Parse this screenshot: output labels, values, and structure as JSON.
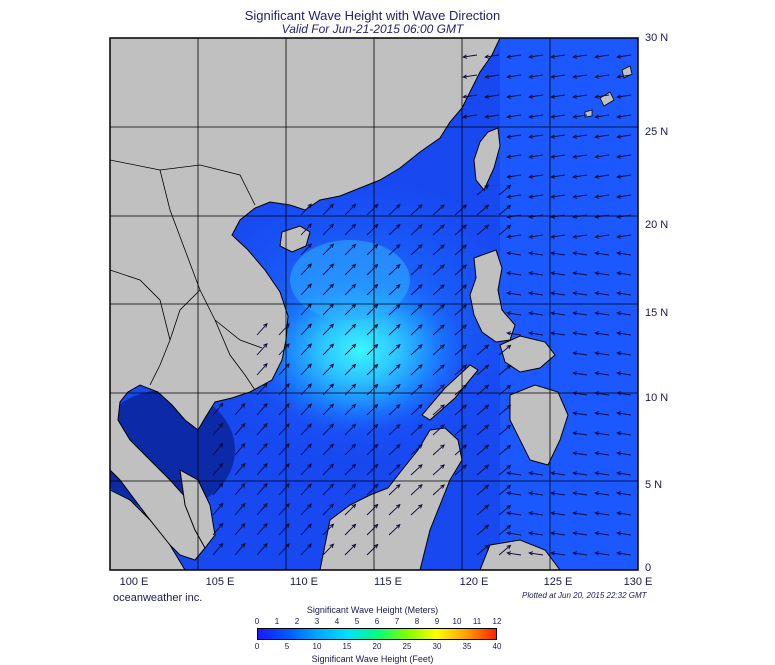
{
  "header": {
    "title": "Significant Wave Height with Wave Direction",
    "subtitle": "Valid For Jun-21-2015 06:00 GMT"
  },
  "map": {
    "lon_labels": [
      "100 E",
      "105 E",
      "110 E",
      "115 E",
      "120 E",
      "125 E",
      "130 E"
    ],
    "lat_labels": [
      "0",
      "5 N",
      "10 N",
      "15 N",
      "20 N",
      "25 N",
      "30 N"
    ],
    "lon_range": [
      100,
      130
    ],
    "lat_range": [
      0,
      30
    ],
    "colors": {
      "land": "#c0c0c0",
      "coast": "#000000",
      "grid": "#000000",
      "arrow": "#0a0a3a",
      "ocean_low": "#0a1a8c",
      "ocean_mid": "#1c5cff",
      "ocean_high": "#38f0ff"
    },
    "wave_pattern": "southwest monsoon, waves from southwest in South China Sea, from east in Pacific",
    "peak_height_region": "central South China Sea near 12N 114E"
  },
  "footer": {
    "credit": "oceanweather inc.",
    "plotted": "Plotted at Jun 20, 2015 22:32 GMT"
  },
  "colorbar": {
    "title_top": "Significant Wave Height (Meters)",
    "title_bottom": "Significant Wave Height (Feet)",
    "meters_ticks": [
      "0",
      "1",
      "2",
      "3",
      "4",
      "5",
      "6",
      "7",
      "8",
      "9",
      "10",
      "11",
      "12"
    ],
    "feet_ticks": [
      "0",
      "5",
      "10",
      "15",
      "20",
      "25",
      "30",
      "35",
      "40"
    ],
    "gradient": [
      "#1a1aff",
      "#0058ff",
      "#00a8ff",
      "#00e0ff",
      "#00ff80",
      "#80ff00",
      "#ffff00",
      "#ffa000",
      "#ff2000"
    ]
  }
}
